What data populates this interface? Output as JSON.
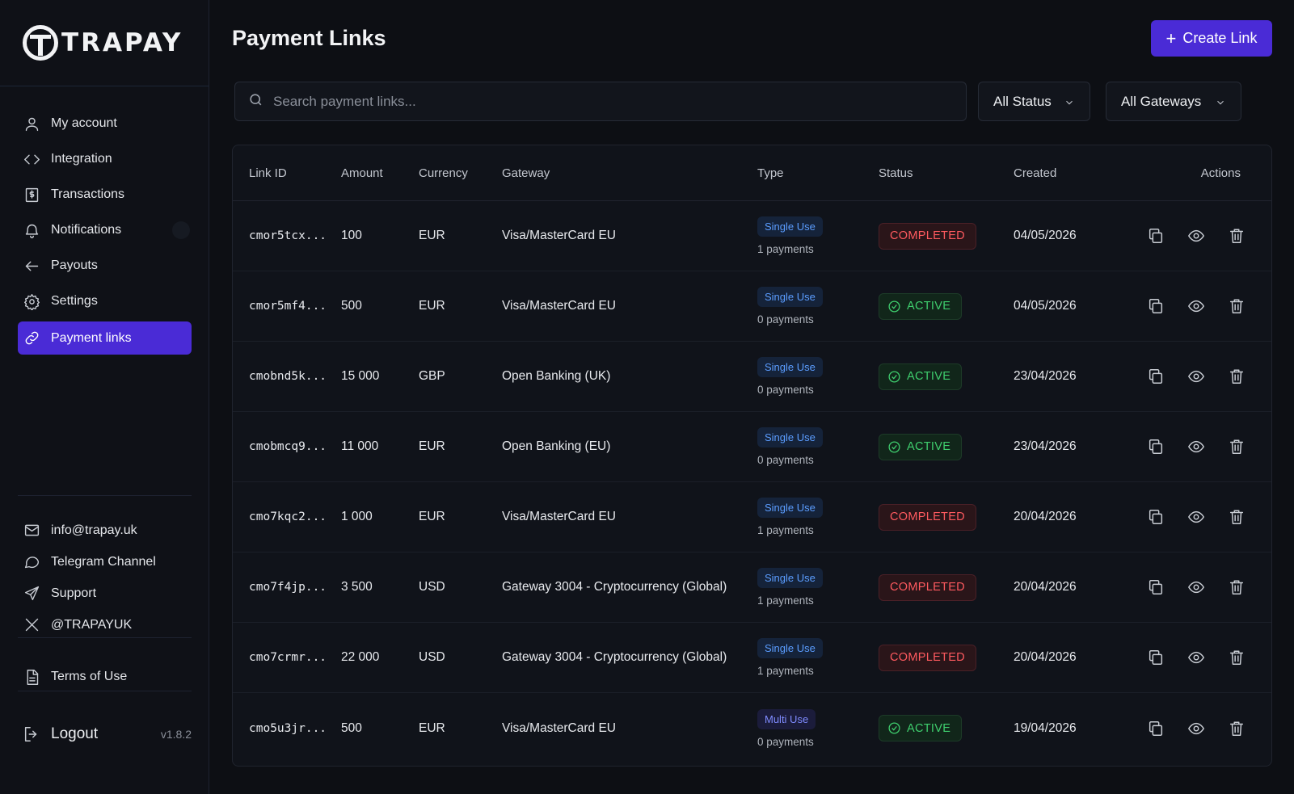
{
  "brand": {
    "name": "TRAPAY"
  },
  "sidebar": {
    "items": [
      {
        "label": "My account",
        "icon": "user-icon"
      },
      {
        "label": "Integration",
        "icon": "code-icon"
      },
      {
        "label": "Transactions",
        "icon": "receipt-icon"
      },
      {
        "label": "Notifications",
        "icon": "bell-icon"
      },
      {
        "label": "Payouts",
        "icon": "arrow-left-icon"
      },
      {
        "label": "Settings",
        "icon": "gear-icon"
      },
      {
        "label": "Payment links",
        "icon": "link-icon",
        "active": true
      }
    ],
    "links": [
      {
        "label": "info@trapay.uk",
        "icon": "mail-icon"
      },
      {
        "label": "Telegram Channel",
        "icon": "chat-icon"
      },
      {
        "label": "Support",
        "icon": "send-icon"
      },
      {
        "label": "@TRAPAYUK",
        "icon": "x-icon"
      }
    ],
    "terms": "Terms of Use",
    "logout": "Logout",
    "version": "v1.8.2"
  },
  "header": {
    "title": "Payment Links",
    "create_label": "Create Link"
  },
  "filters": {
    "search_placeholder": "Search payment links...",
    "status": "All Status",
    "gateway": "All Gateways"
  },
  "table": {
    "columns": {
      "id": "Link ID",
      "amount": "Amount",
      "currency": "Currency",
      "gateway": "Gateway",
      "type": "Type",
      "status": "Status",
      "created": "Created",
      "actions": "Actions"
    },
    "rows": [
      {
        "id": "cmor5tcx...",
        "amount": "100",
        "currency": "EUR",
        "gateway": "Visa/MasterCard EU",
        "type": "Single Use",
        "payments": "1 payments",
        "status": "COMPLETED",
        "created": "04/05/2026"
      },
      {
        "id": "cmor5mf4...",
        "amount": "500",
        "currency": "EUR",
        "gateway": "Visa/MasterCard EU",
        "type": "Single Use",
        "payments": "0 payments",
        "status": "ACTIVE",
        "created": "04/05/2026"
      },
      {
        "id": "cmobnd5k...",
        "amount": "15 000",
        "currency": "GBP",
        "gateway": "Open Banking (UK)",
        "type": "Single Use",
        "payments": "0 payments",
        "status": "ACTIVE",
        "created": "23/04/2026"
      },
      {
        "id": "cmobmcq9...",
        "amount": "11 000",
        "currency": "EUR",
        "gateway": "Open Banking (EU)",
        "type": "Single Use",
        "payments": "0 payments",
        "status": "ACTIVE",
        "created": "23/04/2026"
      },
      {
        "id": "cmo7kqc2...",
        "amount": "1 000",
        "currency": "EUR",
        "gateway": "Visa/MasterCard EU",
        "type": "Single Use",
        "payments": "1 payments",
        "status": "COMPLETED",
        "created": "20/04/2026"
      },
      {
        "id": "cmo7f4jp...",
        "amount": "3 500",
        "currency": "USD",
        "gateway": "Gateway 3004 - Cryptocurrency (Global)",
        "type": "Single Use",
        "payments": "1 payments",
        "status": "COMPLETED",
        "created": "20/04/2026"
      },
      {
        "id": "cmo7crmr...",
        "amount": "22 000",
        "currency": "USD",
        "gateway": "Gateway 3004 - Cryptocurrency (Global)",
        "type": "Single Use",
        "payments": "1 payments",
        "status": "COMPLETED",
        "created": "20/04/2026"
      },
      {
        "id": "cmo5u3jr...",
        "amount": "500",
        "currency": "EUR",
        "gateway": "Visa/MasterCard EU",
        "type": "Multi Use",
        "payments": "0 payments",
        "status": "ACTIVE",
        "created": "19/04/2026"
      }
    ]
  },
  "colors": {
    "accent": "#4a2bd6",
    "completed": "#ff5a5f",
    "active": "#3fcf6e",
    "type_badge": "#5b9dff"
  }
}
